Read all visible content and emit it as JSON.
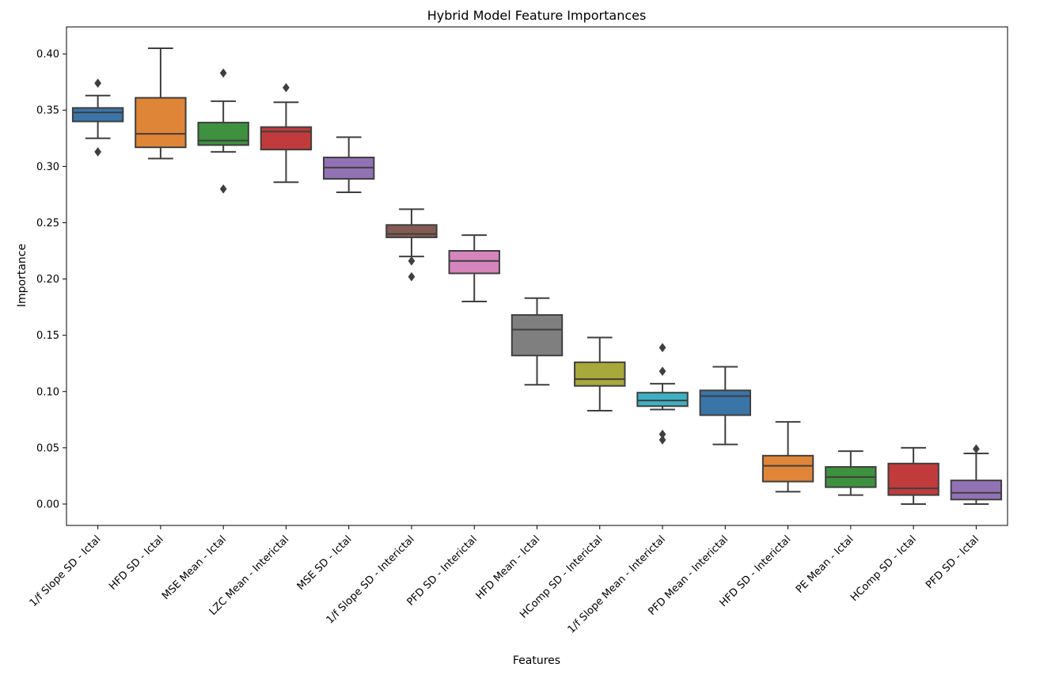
{
  "chart_data": {
    "type": "box",
    "title": "Hybrid Model Feature Importances",
    "xlabel": "Features",
    "ylabel": "Importance",
    "ylim": [
      -0.019,
      0.424
    ],
    "yticks": [
      "0.00",
      "0.05",
      "0.10",
      "0.15",
      "0.20",
      "0.25",
      "0.30",
      "0.35",
      "0.40"
    ],
    "grid": false,
    "categories": [
      "1/f Slope SD - Ictal",
      "HFD SD - Ictal",
      "MSE Mean - Ictal",
      "LZC Mean - Interictal",
      "MSE SD - Ictal",
      "1/f Slope SD - Interictal",
      "PFD SD - Interictal",
      "HFD Mean - Ictal",
      "HComp SD - Interictal",
      "1/f Slope Mean - Interictal",
      "PFD Mean - Interictal",
      "HFD SD - Interictal",
      "PE Mean - Ictal",
      "HComp SD - Ictal",
      "PFD SD - Ictal"
    ],
    "boxes": [
      {
        "whisker_low": 0.325,
        "q1": 0.34,
        "median": 0.348,
        "q3": 0.352,
        "whisker_high": 0.363,
        "outliers": [
          0.374,
          0.313
        ],
        "color": "#3a75a8"
      },
      {
        "whisker_low": 0.307,
        "q1": 0.317,
        "median": 0.329,
        "q3": 0.361,
        "whisker_high": 0.405,
        "outliers": [],
        "color": "#df8537"
      },
      {
        "whisker_low": 0.313,
        "q1": 0.319,
        "median": 0.323,
        "q3": 0.339,
        "whisker_high": 0.358,
        "outliers": [
          0.383,
          0.28
        ],
        "color": "#3e913e"
      },
      {
        "whisker_low": 0.286,
        "q1": 0.315,
        "median": 0.331,
        "q3": 0.335,
        "whisker_high": 0.357,
        "outliers": [
          0.37
        ],
        "color": "#c13b3c"
      },
      {
        "whisker_low": 0.277,
        "q1": 0.289,
        "median": 0.299,
        "q3": 0.308,
        "whisker_high": 0.326,
        "outliers": [],
        "color": "#9272b5"
      },
      {
        "whisker_low": 0.22,
        "q1": 0.237,
        "median": 0.24,
        "q3": 0.248,
        "whisker_high": 0.262,
        "outliers": [
          0.216,
          0.202
        ],
        "color": "#845b53"
      },
      {
        "whisker_low": 0.18,
        "q1": 0.205,
        "median": 0.216,
        "q3": 0.225,
        "whisker_high": 0.239,
        "outliers": [],
        "color": "#d685bd"
      },
      {
        "whisker_low": 0.106,
        "q1": 0.132,
        "median": 0.155,
        "q3": 0.168,
        "whisker_high": 0.183,
        "outliers": [],
        "color": "#7f7f7f"
      },
      {
        "whisker_low": 0.083,
        "q1": 0.105,
        "median": 0.111,
        "q3": 0.126,
        "whisker_high": 0.148,
        "outliers": [],
        "color": "#a9a83a"
      },
      {
        "whisker_low": 0.084,
        "q1": 0.087,
        "median": 0.092,
        "q3": 0.099,
        "whisker_high": 0.107,
        "outliers": [
          0.139,
          0.118,
          0.062,
          0.057
        ],
        "color": "#3eb0c4"
      },
      {
        "whisker_low": 0.053,
        "q1": 0.079,
        "median": 0.096,
        "q3": 0.101,
        "whisker_high": 0.122,
        "outliers": [],
        "color": "#3a75a8"
      },
      {
        "whisker_low": 0.011,
        "q1": 0.02,
        "median": 0.034,
        "q3": 0.043,
        "whisker_high": 0.073,
        "outliers": [],
        "color": "#df8537"
      },
      {
        "whisker_low": 0.008,
        "q1": 0.015,
        "median": 0.024,
        "q3": 0.033,
        "whisker_high": 0.047,
        "outliers": [],
        "color": "#3e913e"
      },
      {
        "whisker_low": 0.0,
        "q1": 0.008,
        "median": 0.014,
        "q3": 0.036,
        "whisker_high": 0.05,
        "outliers": [],
        "color": "#c13b3c"
      },
      {
        "whisker_low": 0.0,
        "q1": 0.004,
        "median": 0.01,
        "q3": 0.021,
        "whisker_high": 0.045,
        "outliers": [
          0.049
        ],
        "color": "#9272b5"
      }
    ]
  }
}
